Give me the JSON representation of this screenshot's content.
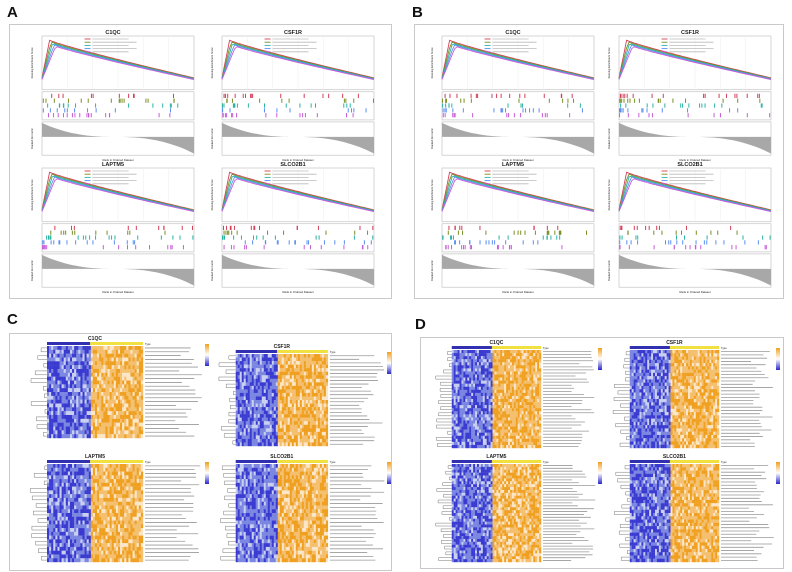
{
  "figure": {
    "panel_labels": [
      "A",
      "B",
      "C",
      "D"
    ],
    "gene_labels": [
      "C1QC",
      "CSF1R",
      "LAPTM5",
      "SLCO2B1"
    ],
    "gsea_axis": {
      "y_top": "Running Enrichment Score",
      "y_bottom": "Ranked list metric",
      "x": "Rank in Ordered Dataset"
    },
    "heatmap_type_label": "Type"
  },
  "colors": {
    "curves": [
      "#d1405a",
      "#7b8f25",
      "#2ab3a3",
      "#5b8ff0",
      "#c85cd8"
    ],
    "heat_low": "#2828c8",
    "heat_high": "#f0a020",
    "type_bar_a": "#3030b0",
    "type_bar_b": "#f0e040",
    "ranked_fill": "#a8a8a8"
  }
}
